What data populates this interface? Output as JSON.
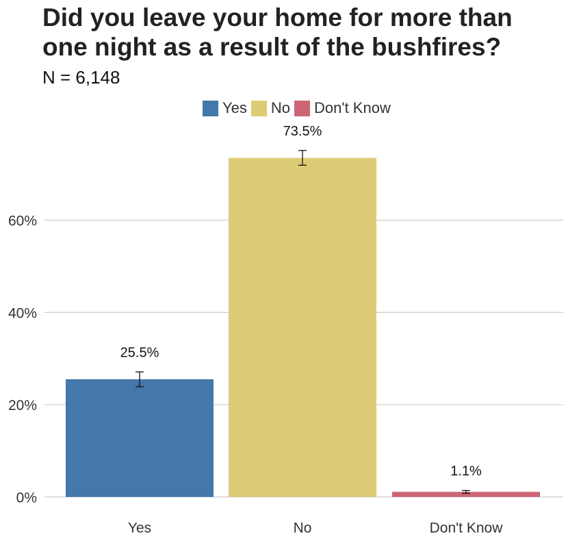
{
  "chart_data": {
    "type": "bar",
    "title": "Did you leave your home for more than one night as a result of the bushfires?",
    "subtitle": "N = 6,148",
    "categories": [
      "Yes",
      "No",
      "Don't Know"
    ],
    "values": [
      25.5,
      73.5,
      1.1
    ],
    "error_low": [
      23.9,
      71.9,
      0.8
    ],
    "error_high": [
      27.1,
      75.1,
      1.4
    ],
    "data_labels": [
      "25.5%",
      "73.5%",
      "1.1%"
    ],
    "colors": [
      "#4477aa",
      "#ddcc77",
      "#cc6677"
    ],
    "legend": {
      "position": "top",
      "entries": [
        "Yes",
        "No",
        "Don't Know"
      ]
    },
    "ylim": [
      0,
      80
    ],
    "yticks": [
      0,
      20,
      40,
      60
    ],
    "ytick_labels": [
      "0%",
      "20%",
      "40%",
      "60%"
    ],
    "xlabel": "",
    "ylabel": "",
    "grid": "horizontal"
  }
}
